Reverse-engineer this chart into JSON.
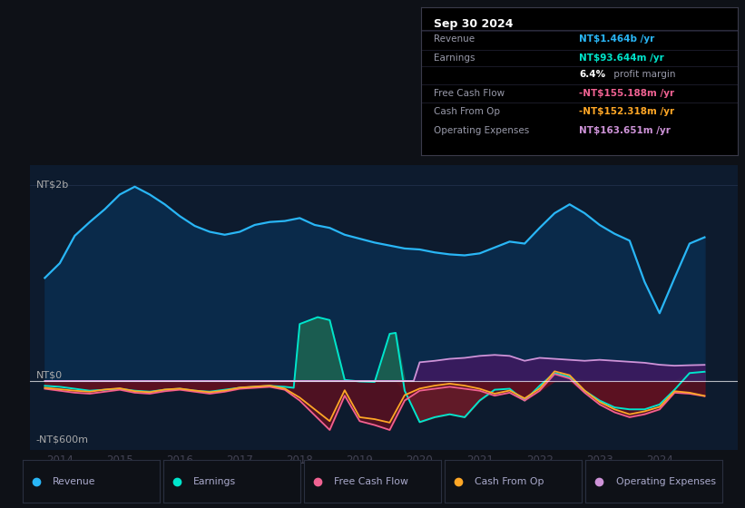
{
  "bg_color": "#0e1117",
  "chart_bg": "#0d1b2e",
  "xlim": [
    2013.5,
    2025.3
  ],
  "ylim": [
    -700,
    2200
  ],
  "xticks": [
    2014,
    2015,
    2016,
    2017,
    2018,
    2019,
    2020,
    2021,
    2022,
    2023,
    2024
  ],
  "colors": {
    "revenue": "#29b6f6",
    "earnings": "#00e5cc",
    "free_cash_flow": "#f06292",
    "cash_from_op": "#ffa726",
    "operating_expenses": "#ce93d8"
  },
  "fill_colors": {
    "revenue": "#0a2a4a",
    "earnings_pos": "#1a5c50",
    "earnings_neg": "#6b1a28",
    "free_cash_flow_neg": "#5a1020",
    "operating_expenses_pos": "#3d1a60"
  },
  "revenue_x": [
    2013.75,
    2014.0,
    2014.25,
    2014.5,
    2014.75,
    2015.0,
    2015.25,
    2015.5,
    2015.75,
    2016.0,
    2016.25,
    2016.5,
    2016.75,
    2017.0,
    2017.25,
    2017.5,
    2017.75,
    2018.0,
    2018.25,
    2018.5,
    2018.75,
    2019.0,
    2019.25,
    2019.5,
    2019.75,
    2020.0,
    2020.25,
    2020.5,
    2020.75,
    2021.0,
    2021.25,
    2021.5,
    2021.75,
    2022.0,
    2022.25,
    2022.5,
    2022.75,
    2023.0,
    2023.25,
    2023.5,
    2023.75,
    2024.0,
    2024.25,
    2024.5,
    2024.75
  ],
  "revenue_y": [
    1050,
    1200,
    1480,
    1620,
    1750,
    1900,
    1980,
    1900,
    1800,
    1680,
    1580,
    1520,
    1490,
    1520,
    1590,
    1620,
    1630,
    1660,
    1590,
    1560,
    1490,
    1450,
    1410,
    1380,
    1350,
    1340,
    1310,
    1290,
    1280,
    1300,
    1360,
    1420,
    1400,
    1560,
    1710,
    1800,
    1710,
    1590,
    1500,
    1430,
    1010,
    690,
    1050,
    1400,
    1464
  ],
  "earnings_x": [
    2013.75,
    2014.0,
    2014.25,
    2014.5,
    2014.75,
    2015.0,
    2015.25,
    2015.5,
    2015.75,
    2016.0,
    2016.25,
    2016.5,
    2016.75,
    2017.0,
    2017.25,
    2017.5,
    2017.75,
    2017.9,
    2018.0,
    2018.3,
    2018.5,
    2018.75,
    2019.0,
    2019.25,
    2019.5,
    2019.6,
    2019.75,
    2020.0,
    2020.25,
    2020.5,
    2020.75,
    2021.0,
    2021.25,
    2021.5,
    2021.75,
    2022.0,
    2022.25,
    2022.5,
    2022.75,
    2023.0,
    2023.25,
    2023.5,
    2023.75,
    2024.0,
    2024.25,
    2024.5,
    2024.75
  ],
  "earnings_y": [
    -50,
    -60,
    -80,
    -100,
    -90,
    -80,
    -100,
    -110,
    -90,
    -80,
    -100,
    -110,
    -90,
    -70,
    -60,
    -50,
    -60,
    -70,
    580,
    650,
    620,
    10,
    -5,
    -10,
    480,
    490,
    -100,
    -420,
    -370,
    -340,
    -370,
    -200,
    -90,
    -80,
    -200,
    -50,
    80,
    40,
    -100,
    -200,
    -270,
    -290,
    -290,
    -240,
    -90,
    80,
    93.644
  ],
  "fcf_x": [
    2013.75,
    2014.0,
    2014.25,
    2014.5,
    2014.75,
    2015.0,
    2015.25,
    2015.5,
    2015.75,
    2016.0,
    2016.25,
    2016.5,
    2016.75,
    2017.0,
    2017.25,
    2017.5,
    2017.75,
    2018.0,
    2018.25,
    2018.5,
    2018.75,
    2019.0,
    2019.25,
    2019.5,
    2019.75,
    2020.0,
    2020.25,
    2020.5,
    2020.75,
    2021.0,
    2021.25,
    2021.5,
    2021.75,
    2022.0,
    2022.25,
    2022.5,
    2022.75,
    2023.0,
    2023.25,
    2023.5,
    2023.75,
    2024.0,
    2024.25,
    2024.5,
    2024.75
  ],
  "fcf_y": [
    -80,
    -100,
    -120,
    -130,
    -110,
    -90,
    -120,
    -130,
    -105,
    -90,
    -110,
    -130,
    -110,
    -80,
    -70,
    -60,
    -90,
    -200,
    -350,
    -500,
    -150,
    -410,
    -450,
    -500,
    -200,
    -100,
    -80,
    -60,
    -80,
    -100,
    -150,
    -120,
    -200,
    -100,
    70,
    25,
    -120,
    -240,
    -320,
    -370,
    -340,
    -290,
    -120,
    -130,
    -155.188
  ],
  "cop_x": [
    2013.75,
    2014.0,
    2014.25,
    2014.5,
    2014.75,
    2015.0,
    2015.25,
    2015.5,
    2015.75,
    2016.0,
    2016.25,
    2016.5,
    2016.75,
    2017.0,
    2017.25,
    2017.5,
    2017.75,
    2018.0,
    2018.25,
    2018.5,
    2018.75,
    2019.0,
    2019.25,
    2019.5,
    2019.75,
    2020.0,
    2020.25,
    2020.5,
    2020.75,
    2021.0,
    2021.25,
    2021.5,
    2021.75,
    2022.0,
    2022.25,
    2022.5,
    2022.75,
    2023.0,
    2023.25,
    2023.5,
    2023.75,
    2024.0,
    2024.25,
    2024.5,
    2024.75
  ],
  "cop_y": [
    -70,
    -85,
    -100,
    -110,
    -88,
    -75,
    -105,
    -115,
    -88,
    -78,
    -98,
    -115,
    -98,
    -68,
    -58,
    -48,
    -78,
    -170,
    -290,
    -410,
    -95,
    -370,
    -390,
    -425,
    -145,
    -78,
    -48,
    -28,
    -48,
    -80,
    -130,
    -98,
    -178,
    -78,
    98,
    58,
    -98,
    -215,
    -290,
    -340,
    -310,
    -265,
    -105,
    -120,
    -152.318
  ],
  "opex_x": [
    2013.75,
    2014.0,
    2014.25,
    2014.5,
    2014.75,
    2015.0,
    2015.25,
    2015.5,
    2015.75,
    2016.0,
    2016.25,
    2016.5,
    2016.75,
    2017.0,
    2017.25,
    2017.5,
    2017.75,
    2018.0,
    2018.25,
    2018.5,
    2018.75,
    2019.0,
    2019.25,
    2019.5,
    2019.75,
    2019.9,
    2020.0,
    2020.25,
    2020.5,
    2020.75,
    2021.0,
    2021.25,
    2021.5,
    2021.75,
    2022.0,
    2022.25,
    2022.5,
    2022.75,
    2023.0,
    2023.25,
    2023.5,
    2023.75,
    2024.0,
    2024.25,
    2024.5,
    2024.75
  ],
  "opex_y": [
    0,
    0,
    0,
    0,
    0,
    0,
    0,
    0,
    0,
    0,
    0,
    0,
    0,
    0,
    0,
    0,
    0,
    0,
    0,
    0,
    0,
    0,
    0,
    0,
    0,
    0,
    190,
    205,
    225,
    235,
    255,
    265,
    255,
    205,
    235,
    225,
    215,
    205,
    215,
    205,
    195,
    185,
    165,
    155,
    160,
    163.651
  ],
  "legend": [
    {
      "label": "Revenue",
      "color": "#29b6f6"
    },
    {
      "label": "Earnings",
      "color": "#00e5cc"
    },
    {
      "label": "Free Cash Flow",
      "color": "#f06292"
    },
    {
      "label": "Cash From Op",
      "color": "#ffa726"
    },
    {
      "label": "Operating Expenses",
      "color": "#ce93d8"
    }
  ]
}
